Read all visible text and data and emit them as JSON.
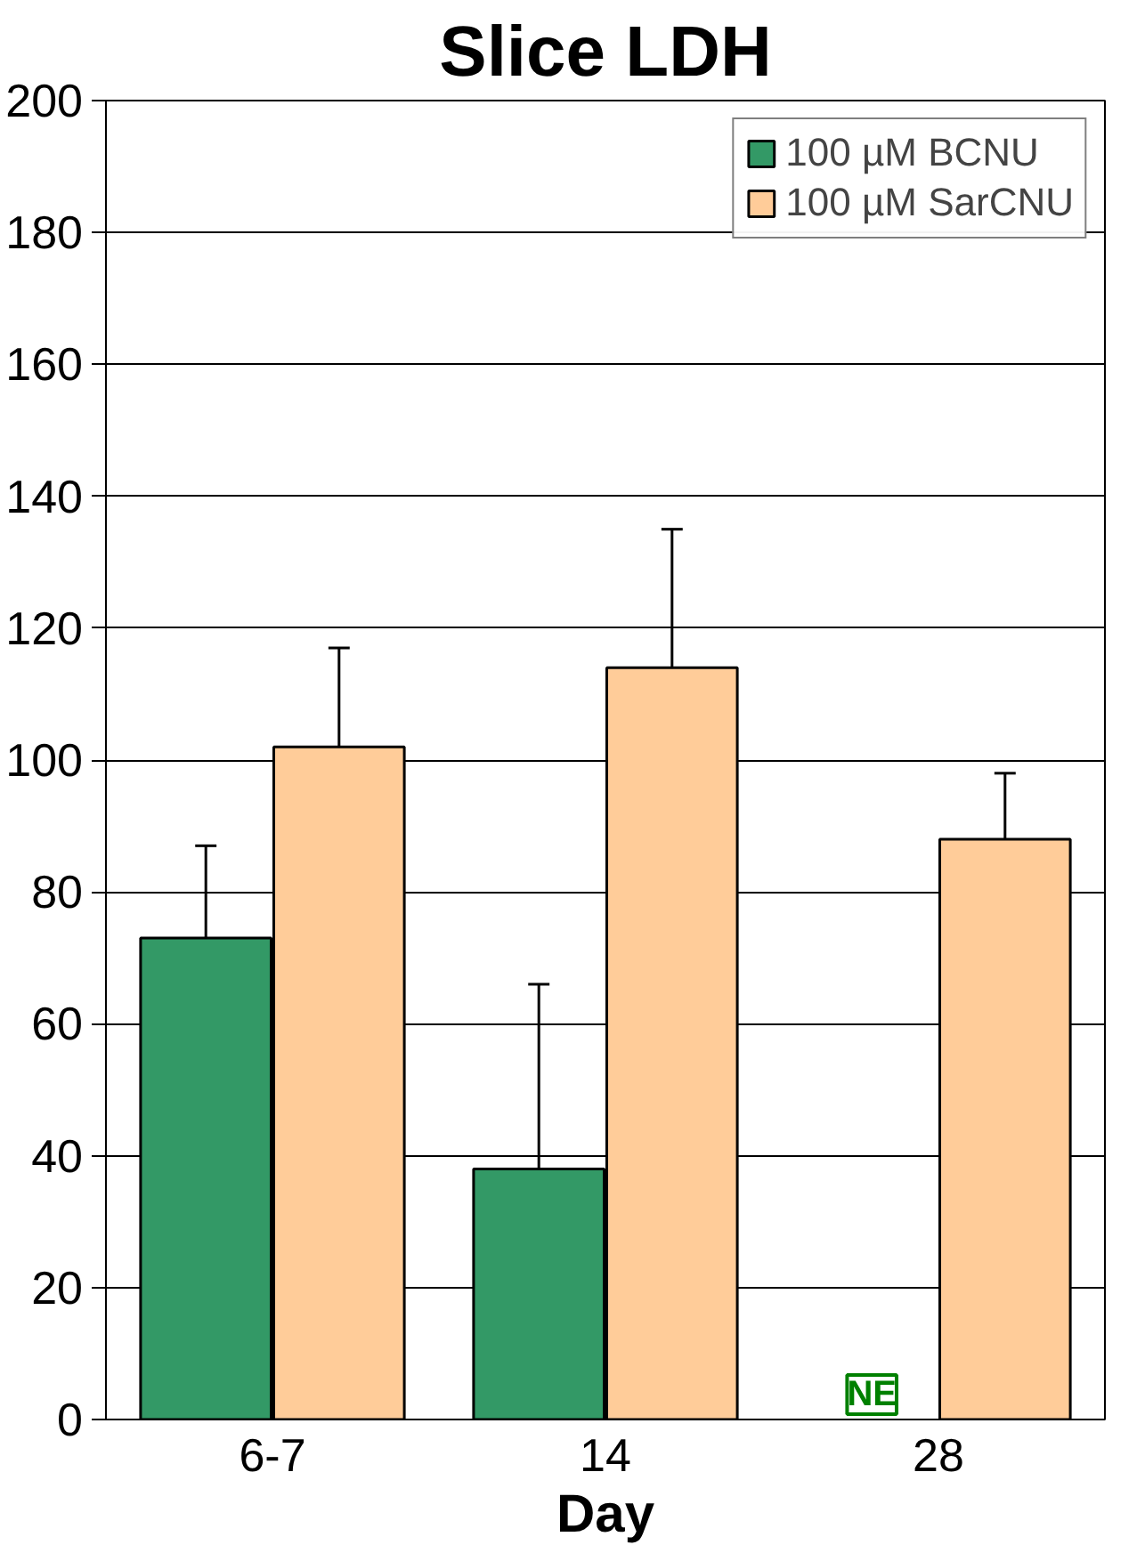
{
  "chart_data": {
    "type": "bar",
    "title": "Slice LDH",
    "xlabel": "Day",
    "categories": [
      "6-7",
      "14",
      "28"
    ],
    "series": [
      {
        "name": "100 µM BCNU",
        "color": "#339966",
        "values": [
          73,
          38,
          null
        ],
        "errors": [
          [
            73,
            87
          ],
          [
            38,
            66
          ],
          null
        ]
      },
      {
        "name": "100 µM SarCNU",
        "color": "#ffcc99",
        "values": [
          102,
          114,
          88
        ],
        "errors": [
          [
            102,
            117
          ],
          [
            114,
            135
          ],
          [
            88,
            98
          ]
        ]
      }
    ],
    "ylim": [
      0,
      200
    ],
    "yticks": [
      0,
      20,
      40,
      60,
      80,
      100,
      120,
      140,
      160,
      180,
      200
    ],
    "grid": "y",
    "legend": "top right",
    "annotations": [
      {
        "text": "NE",
        "x": "28",
        "y": 0
      }
    ]
  }
}
